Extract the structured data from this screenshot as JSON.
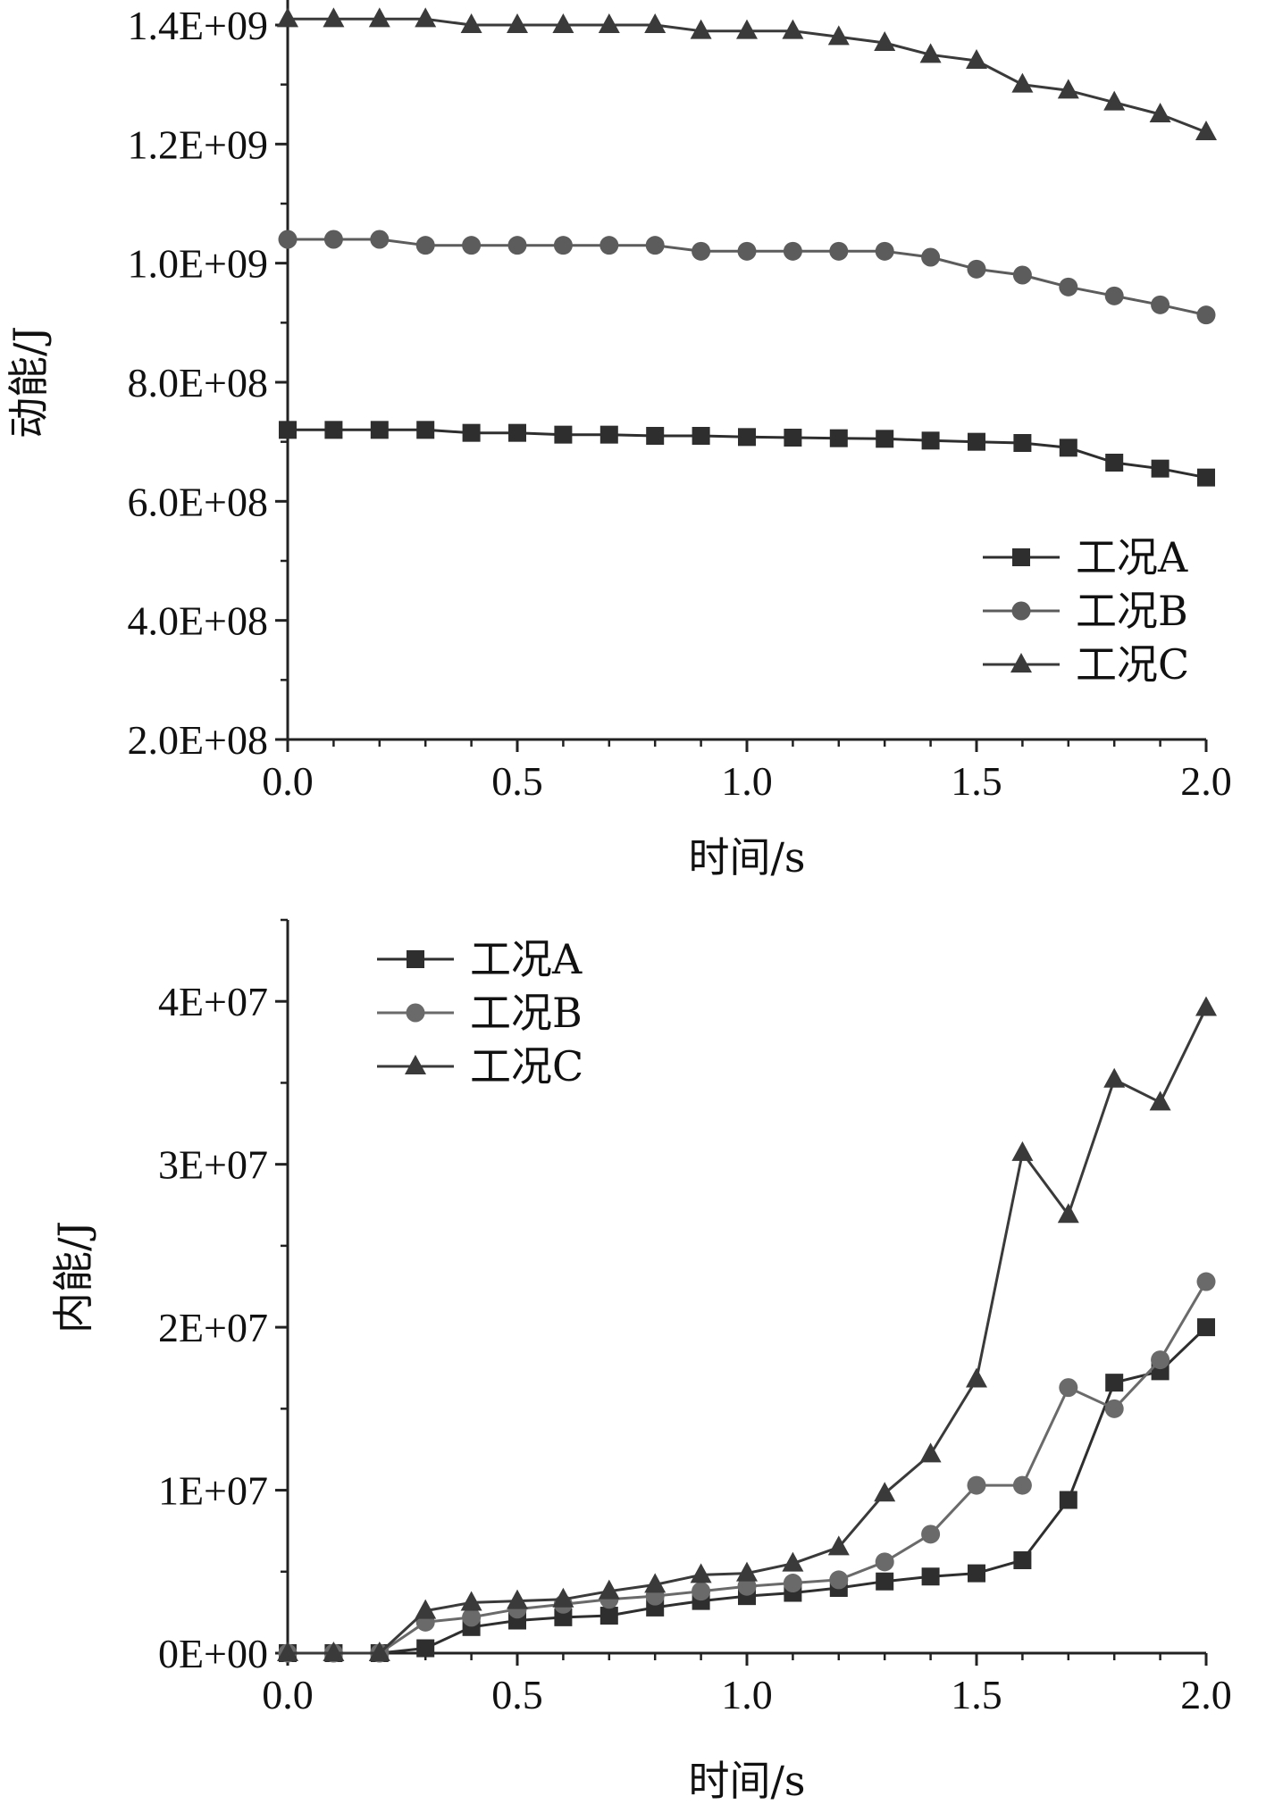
{
  "chart_data": [
    {
      "type": "line",
      "title": "",
      "xlabel": "时间/s",
      "ylabel": "动能/J",
      "xlim": [
        0,
        2.0
      ],
      "ylim": [
        200000000,
        1400000000
      ],
      "xticks": [
        0.0,
        0.5,
        1.0,
        1.5,
        2.0
      ],
      "xtick_labels": [
        "0.0",
        "0.5",
        "1.0",
        "1.5",
        "2.0"
      ],
      "yticks": [
        200000000,
        400000000,
        600000000,
        800000000,
        1000000000,
        1200000000,
        1400000000
      ],
      "ytick_labels": [
        "2.0E+08",
        "4.0E+08",
        "6.0E+08",
        "8.0E+08",
        "1.0E+09",
        "1.2E+09",
        "1.4E+09"
      ],
      "grid": false,
      "legend_position": "bottom-right",
      "series": [
        {
          "name": "工况A",
          "marker": "square",
          "color": "#2e2e2e",
          "x": [
            0.0,
            0.1,
            0.2,
            0.3,
            0.4,
            0.5,
            0.6,
            0.7,
            0.8,
            0.9,
            1.0,
            1.1,
            1.2,
            1.3,
            1.4,
            1.5,
            1.6,
            1.7,
            1.8,
            1.9,
            2.0
          ],
          "values": [
            720000000,
            720000000,
            720000000,
            720000000,
            715000000,
            715000000,
            712000000,
            712000000,
            710000000,
            710000000,
            708000000,
            707000000,
            706000000,
            705000000,
            702000000,
            700000000,
            698000000,
            690000000,
            665000000,
            655000000,
            640000000
          ]
        },
        {
          "name": "工况B",
          "marker": "circle",
          "color": "#5c5c5c",
          "x": [
            0.0,
            0.1,
            0.2,
            0.3,
            0.4,
            0.5,
            0.6,
            0.7,
            0.8,
            0.9,
            1.0,
            1.1,
            1.2,
            1.3,
            1.4,
            1.5,
            1.6,
            1.7,
            1.8,
            1.9,
            2.0
          ],
          "values": [
            1040000000,
            1040000000,
            1040000000,
            1030000000,
            1030000000,
            1030000000,
            1030000000,
            1030000000,
            1030000000,
            1020000000,
            1020000000,
            1020000000,
            1020000000,
            1020000000,
            1010000000,
            990000000,
            980000000,
            960000000,
            945000000,
            930000000,
            913000000
          ]
        },
        {
          "name": "工况C",
          "marker": "triangle",
          "color": "#3a3a3a",
          "x": [
            0.0,
            0.1,
            0.2,
            0.3,
            0.4,
            0.5,
            0.6,
            0.7,
            0.8,
            0.9,
            1.0,
            1.1,
            1.2,
            1.3,
            1.4,
            1.5,
            1.6,
            1.7,
            1.8,
            1.9,
            2.0
          ],
          "values": [
            1410000000,
            1410000000,
            1410000000,
            1410000000,
            1400000000,
            1400000000,
            1400000000,
            1400000000,
            1400000000,
            1390000000,
            1390000000,
            1390000000,
            1380000000,
            1370000000,
            1350000000,
            1340000000,
            1300000000,
            1290000000,
            1270000000,
            1250000000,
            1220000000
          ]
        }
      ]
    },
    {
      "type": "line",
      "title": "",
      "xlabel": "时间/s",
      "ylabel": "内能/J",
      "xlim": [
        0,
        2.0
      ],
      "ylim": [
        0,
        45000000
      ],
      "xticks": [
        0.0,
        0.5,
        1.0,
        1.5,
        2.0
      ],
      "xtick_labels": [
        "0.0",
        "0.5",
        "1.0",
        "1.5",
        "2.0"
      ],
      "yticks": [
        0,
        10000000,
        20000000,
        30000000,
        40000000
      ],
      "ytick_labels": [
        "0E+00",
        "1E+07",
        "2E+07",
        "3E+07",
        "4E+07"
      ],
      "grid": false,
      "legend_position": "top-left",
      "series": [
        {
          "name": "工况A",
          "marker": "square",
          "color": "#2e2e2e",
          "x": [
            0.0,
            0.1,
            0.2,
            0.3,
            0.4,
            0.5,
            0.6,
            0.7,
            0.8,
            0.9,
            1.0,
            1.1,
            1.2,
            1.3,
            1.4,
            1.5,
            1.6,
            1.7,
            1.8,
            1.9,
            2.0
          ],
          "values": [
            0,
            0,
            0,
            300000,
            1600000,
            2000000,
            2200000,
            2300000,
            2800000,
            3200000,
            3500000,
            3700000,
            4000000,
            4400000,
            4700000,
            4900000,
            5700000,
            9400000,
            16600000,
            17300000,
            20000000
          ]
        },
        {
          "name": "工况B",
          "marker": "circle",
          "color": "#6a6a6a",
          "x": [
            0.0,
            0.1,
            0.2,
            0.3,
            0.4,
            0.5,
            0.6,
            0.7,
            0.8,
            0.9,
            1.0,
            1.1,
            1.2,
            1.3,
            1.4,
            1.5,
            1.6,
            1.7,
            1.8,
            1.9,
            2.0
          ],
          "values": [
            0,
            0,
            0,
            1900000,
            2200000,
            2700000,
            3000000,
            3300000,
            3500000,
            3800000,
            4100000,
            4300000,
            4500000,
            5600000,
            7300000,
            10300000,
            10300000,
            16300000,
            15000000,
            18000000,
            22800000
          ]
        },
        {
          "name": "工况C",
          "marker": "triangle",
          "color": "#3a3a3a",
          "x": [
            0.0,
            0.1,
            0.2,
            0.3,
            0.4,
            0.5,
            0.6,
            0.7,
            0.8,
            0.9,
            1.0,
            1.1,
            1.2,
            1.3,
            1.4,
            1.5,
            1.6,
            1.7,
            1.8,
            1.9,
            2.0
          ],
          "values": [
            0,
            0,
            0,
            2600000,
            3100000,
            3200000,
            3300000,
            3800000,
            4200000,
            4800000,
            4900000,
            5500000,
            6500000,
            9800000,
            12200000,
            16800000,
            30700000,
            26900000,
            35200000,
            33800000,
            39600000
          ]
        }
      ]
    }
  ]
}
